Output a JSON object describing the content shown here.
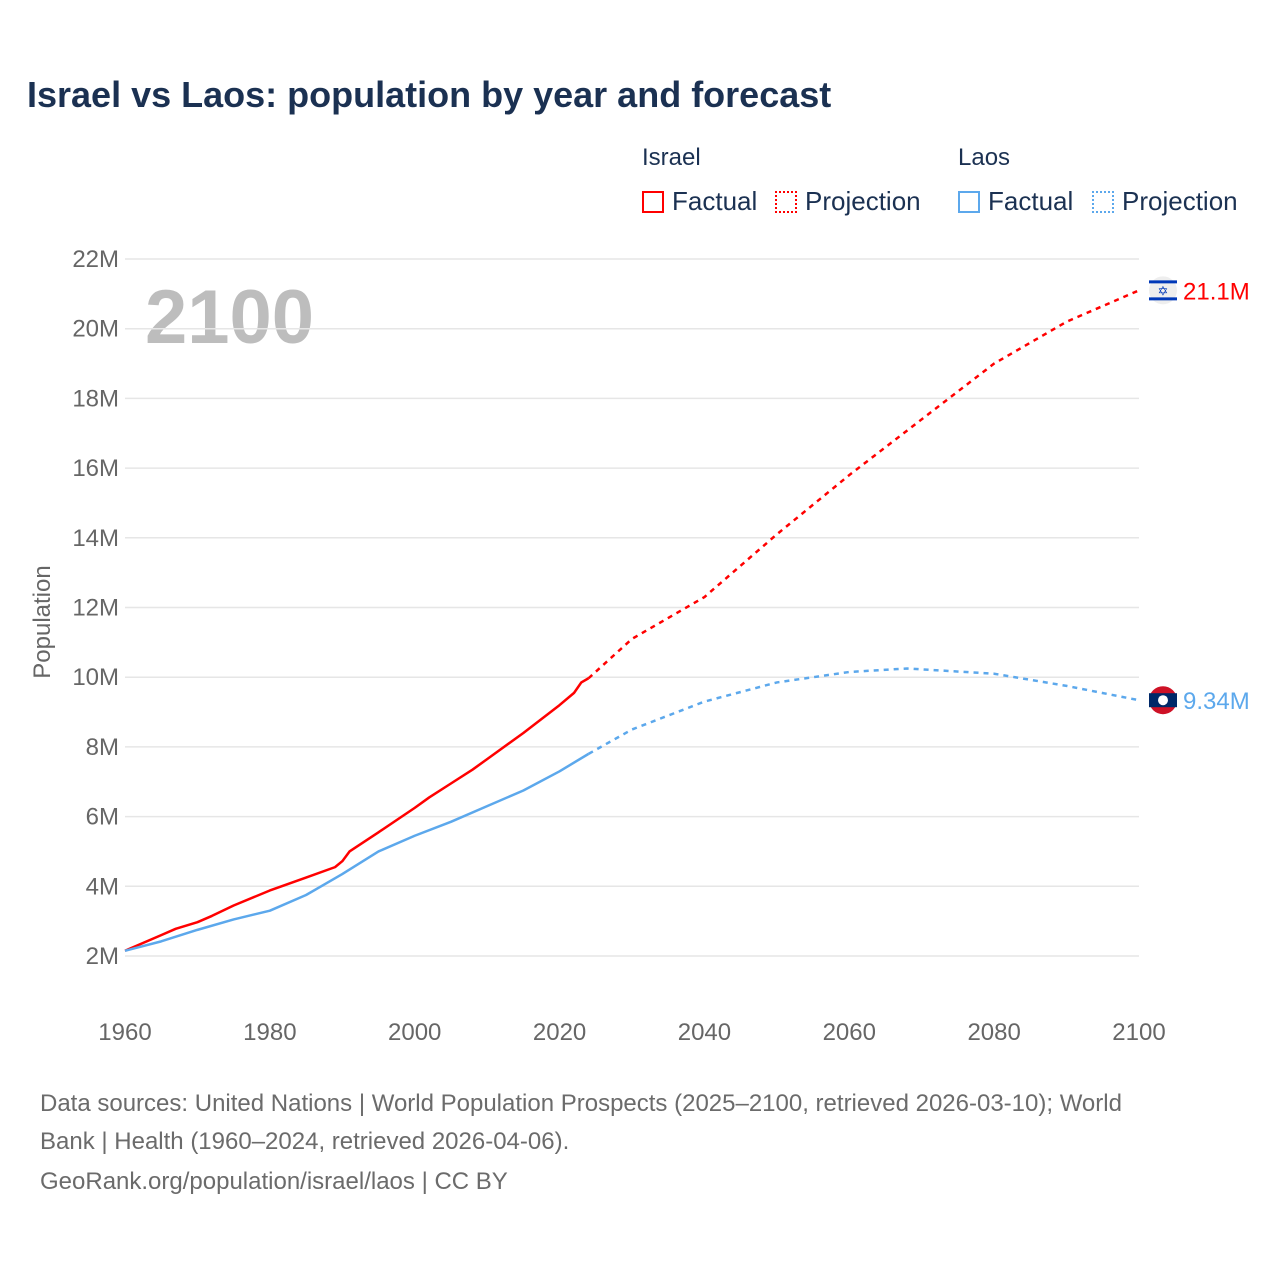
{
  "title": "Israel vs Laos: population by year and forecast",
  "legend": {
    "israel": {
      "name": "Israel",
      "factual": "Factual",
      "projection": "Projection"
    },
    "laos": {
      "name": "Laos",
      "factual": "Factual",
      "projection": "Projection"
    }
  },
  "footer": {
    "line1": "Data sources: United Nations | World Population Prospects (2025–2100, retrieved 2026-03-10); World",
    "line2": "Bank | Health (1960–2024, retrieved 2026-04-06).",
    "line3": "GeoRank.org/population/israel/laos | CC BY"
  },
  "chart_data": {
    "type": "line",
    "title": "Israel vs Laos: population by year and forecast",
    "xlabel": "",
    "ylabel": "Population",
    "year_label": "2100",
    "xlim": [
      1960,
      2100
    ],
    "ylim": [
      2,
      22
    ],
    "x_ticks": [
      "1960",
      "1980",
      "2000",
      "2020",
      "2040",
      "2060",
      "2080",
      "2100"
    ],
    "y_ticks": [
      "2M",
      "4M",
      "6M",
      "8M",
      "10M",
      "12M",
      "14M",
      "16M",
      "18M",
      "20M",
      "22M"
    ],
    "series": [
      {
        "name": "Israel",
        "color": "#ff0000",
        "end_label": "21.1M",
        "flag": "israel-flag",
        "factual": [
          [
            1960,
            2.15
          ],
          [
            1965,
            2.6
          ],
          [
            1967,
            2.78
          ],
          [
            1970,
            2.97
          ],
          [
            1972,
            3.15
          ],
          [
            1975,
            3.45
          ],
          [
            1980,
            3.88
          ],
          [
            1985,
            4.25
          ],
          [
            1989,
            4.55
          ],
          [
            1990,
            4.72
          ],
          [
            1991,
            5.0
          ],
          [
            1995,
            5.55
          ],
          [
            2000,
            6.25
          ],
          [
            2002,
            6.55
          ],
          [
            2005,
            6.95
          ],
          [
            2008,
            7.35
          ],
          [
            2010,
            7.65
          ],
          [
            2015,
            8.4
          ],
          [
            2020,
            9.2
          ],
          [
            2022,
            9.55
          ],
          [
            2023,
            9.85
          ],
          [
            2024,
            9.97
          ]
        ],
        "projection": [
          [
            2024,
            9.97
          ],
          [
            2030,
            11.1
          ],
          [
            2040,
            12.3
          ],
          [
            2050,
            14.1
          ],
          [
            2060,
            15.8
          ],
          [
            2070,
            17.4
          ],
          [
            2080,
            19.0
          ],
          [
            2090,
            20.2
          ],
          [
            2100,
            21.1
          ]
        ]
      },
      {
        "name": "Laos",
        "color": "#5ca8ec",
        "end_label": "9.34M",
        "flag": "laos-flag",
        "factual": [
          [
            1960,
            2.15
          ],
          [
            1965,
            2.42
          ],
          [
            1970,
            2.75
          ],
          [
            1975,
            3.05
          ],
          [
            1980,
            3.3
          ],
          [
            1985,
            3.75
          ],
          [
            1990,
            4.35
          ],
          [
            1995,
            5.0
          ],
          [
            2000,
            5.45
          ],
          [
            2005,
            5.85
          ],
          [
            2010,
            6.3
          ],
          [
            2015,
            6.75
          ],
          [
            2020,
            7.3
          ],
          [
            2024,
            7.8
          ]
        ],
        "projection": [
          [
            2024,
            7.8
          ],
          [
            2030,
            8.5
          ],
          [
            2040,
            9.3
          ],
          [
            2050,
            9.85
          ],
          [
            2060,
            10.15
          ],
          [
            2068,
            10.25
          ],
          [
            2080,
            10.1
          ],
          [
            2090,
            9.75
          ],
          [
            2100,
            9.34
          ]
        ]
      }
    ]
  }
}
